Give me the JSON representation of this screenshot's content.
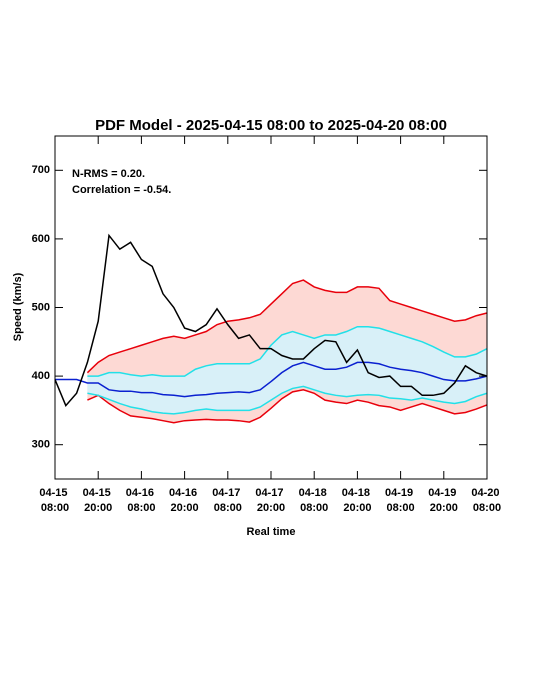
{
  "chart_data": {
    "type": "line",
    "title": "PDF Model - 2025-04-15 08:00 to 2025-04-20 08:00",
    "xlabel": "Real time",
    "ylabel": "Speed (km/s)",
    "annotations": [
      "N-RMS = 0.20.",
      "Correlation = -0.54."
    ],
    "x": [
      0,
      3,
      6,
      9,
      12,
      15,
      18,
      21,
      24,
      27,
      30,
      33,
      36,
      39,
      42,
      45,
      48,
      51,
      54,
      57,
      60,
      63,
      66,
      69,
      72,
      75,
      78,
      81,
      84,
      87,
      90,
      93,
      96,
      99,
      102,
      105,
      108,
      111,
      114,
      117,
      120
    ],
    "xlim": [
      0,
      120
    ],
    "xticks": [
      {
        "value": 0,
        "label": "04-15 08:00"
      },
      {
        "value": 12,
        "label": "04-15 20:00"
      },
      {
        "value": 24,
        "label": "04-16 08:00"
      },
      {
        "value": 36,
        "label": "04-16 20:00"
      },
      {
        "value": 48,
        "label": "04-17 08:00"
      },
      {
        "value": 60,
        "label": "04-17 20:00"
      },
      {
        "value": 72,
        "label": "04-18 08:00"
      },
      {
        "value": 84,
        "label": "04-18 20:00"
      },
      {
        "value": 96,
        "label": "04-19 08:00"
      },
      {
        "value": 108,
        "label": "04-19 20:00"
      },
      {
        "value": 120,
        "label": "04-20 08:00"
      }
    ],
    "ylim": [
      250,
      750
    ],
    "yticks": [
      300,
      400,
      500,
      600,
      700
    ],
    "series": [
      {
        "color": "#e8000b",
        "fill": "#fdd9d4",
        "upper": [
          null,
          null,
          null,
          405,
          420,
          430,
          435,
          440,
          445,
          450,
          455,
          458,
          455,
          460,
          465,
          475,
          480,
          482,
          485,
          490,
          505,
          520,
          535,
          540,
          530,
          525,
          522,
          522,
          530,
          530,
          528,
          510,
          505,
          500,
          495,
          490,
          485,
          480,
          482,
          488,
          492
        ],
        "lower": [
          null,
          null,
          null,
          365,
          372,
          360,
          350,
          342,
          340,
          338,
          335,
          332,
          335,
          336,
          337,
          336,
          336,
          335,
          333,
          340,
          353,
          367,
          377,
          380,
          375,
          365,
          362,
          360,
          365,
          362,
          357,
          355,
          350,
          355,
          360,
          355,
          350,
          345,
          347,
          352,
          358
        ]
      },
      {
        "color": "#22e0e8",
        "fill": "#d8f0f8",
        "upper": [
          null,
          null,
          null,
          400,
          400,
          405,
          405,
          402,
          400,
          402,
          400,
          400,
          400,
          410,
          415,
          418,
          418,
          418,
          418,
          425,
          445,
          460,
          465,
          460,
          455,
          460,
          460,
          465,
          472,
          472,
          470,
          465,
          460,
          455,
          450,
          443,
          435,
          428,
          428,
          432,
          440
        ],
        "lower": [
          null,
          null,
          null,
          375,
          372,
          366,
          360,
          355,
          352,
          348,
          346,
          345,
          347,
          350,
          352,
          350,
          350,
          350,
          350,
          355,
          365,
          375,
          382,
          385,
          380,
          375,
          372,
          370,
          372,
          373,
          372,
          368,
          367,
          365,
          368,
          365,
          362,
          360,
          363,
          370,
          375
        ]
      },
      {
        "color": "#0a20d0",
        "values": [
          395,
          395,
          395,
          390,
          390,
          380,
          378,
          378,
          376,
          376,
          373,
          372,
          370,
          372,
          373,
          375,
          376,
          377,
          376,
          380,
          392,
          405,
          415,
          420,
          415,
          410,
          410,
          413,
          420,
          420,
          418,
          413,
          410,
          408,
          405,
          400,
          395,
          393,
          393,
          396,
          400
        ]
      },
      {
        "color": "#000000",
        "values": [
          395,
          357,
          375,
          420,
          480,
          605,
          585,
          595,
          570,
          560,
          520,
          500,
          470,
          465,
          475,
          498,
          475,
          455,
          460,
          440,
          440,
          430,
          425,
          425,
          440,
          452,
          450,
          420,
          438,
          405,
          398,
          400,
          385,
          385,
          372,
          372,
          375,
          390,
          415,
          405,
          400
        ]
      }
    ]
  }
}
